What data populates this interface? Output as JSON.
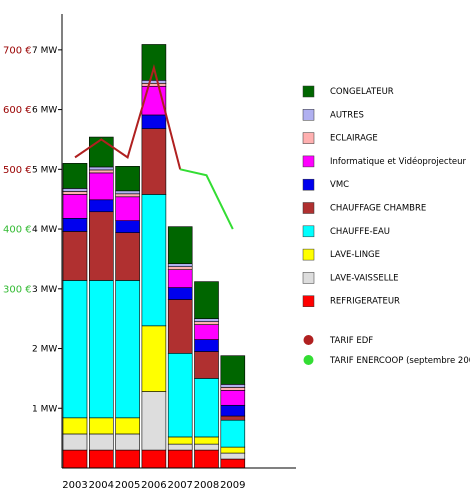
{
  "chart_data": {
    "type": "bar",
    "stacked": true,
    "categories": [
      "2003",
      "2004",
      "2005",
      "2006",
      "2007",
      "2008",
      "2009"
    ],
    "y_unit": "MW",
    "ylim": [
      0,
      7.6
    ],
    "y_ticks": [
      {
        "value": 1,
        "label": "1 MW"
      },
      {
        "value": 2,
        "label": "2 MW"
      },
      {
        "value": 3,
        "label": "3 MW"
      },
      {
        "value": 4,
        "label": "4 MW"
      },
      {
        "value": 5,
        "label": "5 MW"
      },
      {
        "value": 6,
        "label": "6 MW"
      },
      {
        "value": 7,
        "label": "7 MW"
      }
    ],
    "y2_ticks": [
      {
        "value": 3,
        "label": "300 €",
        "color": "#33bb33"
      },
      {
        "value": 4,
        "label": "400 €",
        "color": "#33bb33"
      },
      {
        "value": 5,
        "label": "500 €",
        "color": "#990000"
      },
      {
        "value": 6,
        "label": "600 €",
        "color": "#990000"
      },
      {
        "value": 7,
        "label": "700 €",
        "color": "#990000"
      }
    ],
    "series": [
      {
        "name": "REFRIGERATEUR",
        "color": "#ff0000",
        "values": [
          0.3,
          0.3,
          0.3,
          0.3,
          0.3,
          0.3,
          0.15
        ]
      },
      {
        "name": "LAVE-VAISSELLE",
        "color": "#dddddd",
        "values": [
          0.27,
          0.27,
          0.27,
          0.98,
          0.1,
          0.1,
          0.1
        ]
      },
      {
        "name": "LAVE-LINGE",
        "color": "#ffff00",
        "values": [
          0.27,
          0.27,
          0.27,
          1.1,
          0.12,
          0.12,
          0.1
        ]
      },
      {
        "name": "CHAUFFE-EAU",
        "color": "#00ffff",
        "values": [
          2.3,
          2.3,
          2.3,
          2.2,
          1.4,
          0.98,
          0.45
        ]
      },
      {
        "name": "CHAUFFAGE CHAMBRE",
        "color": "#b03030",
        "values": [
          0.82,
          1.15,
          0.8,
          1.1,
          0.9,
          0.45,
          0.07
        ]
      },
      {
        "name": "VMC",
        "color": "#0000ee",
        "values": [
          0.22,
          0.2,
          0.2,
          0.23,
          0.2,
          0.2,
          0.18
        ]
      },
      {
        "name": "Informatique et Vidéoprojecteur",
        "color": "#ff00ff",
        "values": [
          0.4,
          0.45,
          0.4,
          0.48,
          0.3,
          0.25,
          0.25
        ]
      },
      {
        "name": "ECLAIRAGE",
        "color": "#ffb0b0",
        "values": [
          0.05,
          0.05,
          0.05,
          0.05,
          0.05,
          0.05,
          0.05
        ]
      },
      {
        "name": "AUTRES",
        "color": "#b0b0f0",
        "values": [
          0.05,
          0.05,
          0.05,
          0.05,
          0.05,
          0.05,
          0.05
        ]
      },
      {
        "name": "CONGELATEUR",
        "color": "#006600",
        "values": [
          0.42,
          0.5,
          0.41,
          0.6,
          0.62,
          0.62,
          0.48
        ]
      }
    ],
    "lines": [
      {
        "name": "TARIF EDF",
        "color": "#b02020",
        "points": [
          [
            0,
            5.2
          ],
          [
            1,
            5.5
          ],
          [
            2,
            5.2
          ],
          [
            3,
            6.7
          ],
          [
            4,
            5.0
          ]
        ]
      },
      {
        "name": "TARIF ENERCOOP (septembre 2007)",
        "color": "#33dd33",
        "points": [
          [
            4,
            5.0
          ],
          [
            5,
            4.9
          ],
          [
            6,
            4.0
          ]
        ]
      }
    ],
    "legend_order": [
      "CONGELATEUR",
      "AUTRES",
      "ECLAIRAGE",
      "Informatique et Vidéoprojecteur",
      "VMC",
      "CHAUFFAGE CHAMBRE",
      "CHAUFFE-EAU",
      "LAVE-LINGE",
      "LAVE-VAISSELLE",
      "REFRIGERATEUR",
      "TARIF EDF",
      "TARIF ENERCOOP (septembre 2007)"
    ],
    "legend_placement": "right",
    "grid": false
  }
}
